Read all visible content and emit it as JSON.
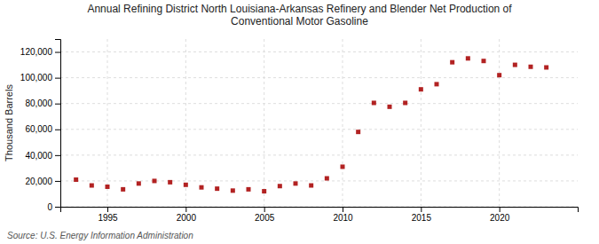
{
  "chart_data": {
    "type": "scatter",
    "title": "Annual Refining District North Louisiana-Arkansas Refinery and Blender Net Production of\nConventional Motor Gasoline",
    "ylabel": "Thousand Barrels",
    "annotations": [
      "Source: U.S. Energy Information Administration"
    ],
    "x": [
      1993,
      1994,
      1995,
      1996,
      1997,
      1998,
      1999,
      2000,
      2001,
      2002,
      2003,
      2004,
      2005,
      2006,
      2007,
      2008,
      2009,
      2010,
      2011,
      2012,
      2013,
      2014,
      2015,
      2016,
      2017,
      2018,
      2019,
      2020,
      2021,
      2022,
      2023
    ],
    "values": [
      21000,
      16500,
      15500,
      13500,
      18000,
      20000,
      19000,
      17000,
      15000,
      14000,
      12500,
      13500,
      12000,
      16000,
      18000,
      16500,
      22000,
      31000,
      58000,
      80500,
      77500,
      80500,
      91000,
      95000,
      112000,
      115000,
      113000,
      102000,
      110000,
      108500,
      108000
    ],
    "color": "#b22222",
    "marker": "square",
    "xlim": [
      1992,
      2025
    ],
    "xticks": [
      1995,
      2000,
      2005,
      2010,
      2015,
      2020
    ],
    "ylim": [
      0,
      130000
    ],
    "yticks": [
      0,
      {
        "value": 20000,
        "label": "20,000"
      },
      {
        "value": 40000,
        "label": "40,000"
      },
      {
        "value": 60000,
        "label": "60,000"
      },
      {
        "value": 80000,
        "label": "80,000"
      },
      {
        "value": 100000,
        "label": "100,000"
      },
      {
        "value": 120000,
        "label": "120,000"
      }
    ],
    "grid": true
  }
}
